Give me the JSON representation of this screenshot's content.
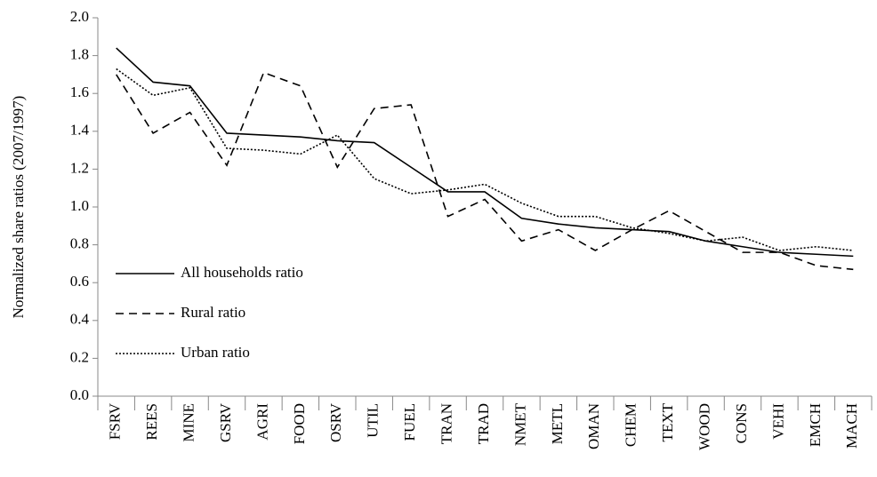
{
  "chart_data": {
    "type": "line",
    "y_label": "Normalized share ratios (2007/1997)",
    "categories": [
      "FSRV",
      "REES",
      "MINE",
      "GSRV",
      "AGRI",
      "FOOD",
      "OSRV",
      "UTIL",
      "FUEL",
      "TRAN",
      "TRAD",
      "NMET",
      "METL",
      "OMAN",
      "CHEM",
      "TEXT",
      "WOOD",
      "CONS",
      "VEHI",
      "EMCH",
      "MACH"
    ],
    "series": [
      {
        "name": "All households ratio",
        "color": "#000000",
        "line_style": "solid",
        "values": [
          1.84,
          1.66,
          1.64,
          1.39,
          1.38,
          1.37,
          1.35,
          1.34,
          1.21,
          1.08,
          1.08,
          0.94,
          0.91,
          0.89,
          0.88,
          0.87,
          0.82,
          0.79,
          0.76,
          0.75,
          0.74
        ]
      },
      {
        "name": "Rural ratio",
        "color": "#000000",
        "line_style": "dashed",
        "values": [
          1.7,
          1.39,
          1.5,
          1.22,
          1.71,
          1.64,
          1.21,
          1.52,
          1.54,
          0.95,
          1.04,
          0.82,
          0.88,
          0.77,
          0.88,
          0.98,
          0.87,
          0.76,
          0.76,
          0.69,
          0.67
        ]
      },
      {
        "name": "Urban ratio",
        "color": "#000000",
        "line_style": "dotted",
        "values": [
          1.73,
          1.59,
          1.63,
          1.31,
          1.3,
          1.28,
          1.38,
          1.15,
          1.07,
          1.09,
          1.12,
          1.02,
          0.95,
          0.95,
          0.89,
          0.86,
          0.82,
          0.84,
          0.77,
          0.79,
          0.77
        ]
      }
    ],
    "ylim": [
      0,
      2
    ],
    "yticks": [
      {
        "value": 0,
        "label": "0.0"
      },
      0.2,
      0.4,
      0.6,
      0.8,
      {
        "value": 1,
        "label": "1.0"
      },
      1.2,
      1.4,
      1.6,
      1.8,
      {
        "value": 2,
        "label": "2.0"
      }
    ],
    "grid": false,
    "legend_position": "left"
  }
}
